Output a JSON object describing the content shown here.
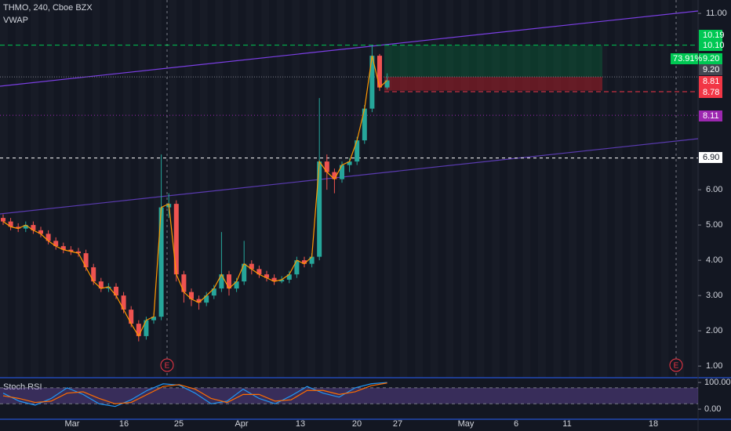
{
  "chart_data": {
    "type": "candlestick",
    "title": "THMO, 240, Cboe BZX",
    "indicator": "VWAP",
    "xtick_labels": [
      "Mar",
      "16",
      "25",
      "Apr",
      "13",
      "20",
      "27",
      "May",
      "6",
      "11",
      "18"
    ],
    "open": [
      5.2,
      5.1,
      4.95,
      4.9,
      5.0,
      4.85,
      4.75,
      4.55,
      4.4,
      4.3,
      4.25,
      4.2,
      3.8,
      3.4,
      3.2,
      3.25,
      3.0,
      2.6,
      2.2,
      1.85,
      2.3,
      2.4,
      5.5,
      5.6,
      3.6,
      3.1,
      2.9,
      2.8,
      3.0,
      3.2,
      3.6,
      3.2,
      3.4,
      3.9,
      3.75,
      3.6,
      3.5,
      3.4,
      3.45,
      3.6,
      4.0,
      3.9,
      4.1,
      6.8,
      6.5,
      6.3,
      6.7,
      6.8,
      7.4,
      8.3,
      9.8,
      8.9
    ],
    "high": [
      5.3,
      5.2,
      5.05,
      5.1,
      5.1,
      4.95,
      4.85,
      4.65,
      4.5,
      4.4,
      4.35,
      4.3,
      3.9,
      3.5,
      3.35,
      3.35,
      3.1,
      2.7,
      2.3,
      2.4,
      2.5,
      7.0,
      5.9,
      5.7,
      3.7,
      3.2,
      3.0,
      3.1,
      3.3,
      4.8,
      3.7,
      3.5,
      4.55,
      4.0,
      3.85,
      3.7,
      3.6,
      3.55,
      3.7,
      4.1,
      4.1,
      4.2,
      8.6,
      7.0,
      6.6,
      6.8,
      6.9,
      7.5,
      8.4,
      10.1,
      9.85,
      9.3
    ],
    "low": [
      5.0,
      4.85,
      4.8,
      4.8,
      4.75,
      4.65,
      4.45,
      4.3,
      4.2,
      4.15,
      4.1,
      3.7,
      3.3,
      3.1,
      3.1,
      2.9,
      2.5,
      2.1,
      1.7,
      1.75,
      2.2,
      2.3,
      5.2,
      3.4,
      2.8,
      2.7,
      2.6,
      2.7,
      2.9,
      3.1,
      3.0,
      3.1,
      3.3,
      3.6,
      3.5,
      3.4,
      3.3,
      3.35,
      3.35,
      3.5,
      3.8,
      3.8,
      4.0,
      6.0,
      5.9,
      6.2,
      6.5,
      6.7,
      7.3,
      8.2,
      8.8,
      8.85
    ],
    "close": [
      5.1,
      4.95,
      4.9,
      5.0,
      4.85,
      4.75,
      4.55,
      4.4,
      4.3,
      4.25,
      4.2,
      3.8,
      3.4,
      3.2,
      3.25,
      3.0,
      2.6,
      2.2,
      1.85,
      2.3,
      2.4,
      5.5,
      5.6,
      3.6,
      3.1,
      2.9,
      2.8,
      3.0,
      3.2,
      3.6,
      3.2,
      3.4,
      3.9,
      3.75,
      3.6,
      3.5,
      3.4,
      3.45,
      3.6,
      4.0,
      3.9,
      4.1,
      6.8,
      6.5,
      6.3,
      6.7,
      6.8,
      7.4,
      8.3,
      9.8,
      8.9,
      9.1
    ],
    "up_color": "#26a69a",
    "down_color": "#ef5350",
    "vwap_color": "#ff9800",
    "ylim": [
      0.67,
      11.38
    ],
    "yticks": [
      {
        "value": 1,
        "label": "1.00"
      },
      {
        "value": 2,
        "label": "2.00"
      },
      {
        "value": 3,
        "label": "3.00"
      },
      {
        "value": 4,
        "label": "4.00"
      },
      {
        "value": 5,
        "label": "5.00"
      },
      {
        "value": 6,
        "label": "6.00"
      },
      {
        "value": 11,
        "label": "11.00"
      }
    ],
    "levels": [
      {
        "value": 10.19,
        "label": "10.19",
        "color": "#00c853"
      },
      {
        "value": 10.1,
        "label": "10.10",
        "color": "#00c853"
      },
      {
        "value": 9.2,
        "label": "9.20",
        "color": "#00c853"
      },
      {
        "value": 9.2,
        "label": "9.20",
        "color": "#434651"
      },
      {
        "value": 8.81,
        "label": "8.81",
        "color": "#f23645"
      },
      {
        "value": 8.78,
        "label": "8.78",
        "color": "#f23645"
      },
      {
        "value": 8.11,
        "label": "8.11",
        "color": "#9c27b0"
      },
      {
        "value": 6.9,
        "label": "6.90",
        "color": "#ffffff"
      }
    ],
    "position": {
      "target": 10.1,
      "entry": 9.2,
      "stop": 8.81,
      "percent_label": "73.91%"
    },
    "events": [
      "E",
      "E"
    ],
    "stoch": {
      "title": "Stoch RSI",
      "ylim": [
        -38,
        112
      ],
      "yticks": [
        {
          "value": 100,
          "label": "100.00"
        },
        {
          "value": 0,
          "label": "0.00"
        }
      ],
      "bands": [
        80,
        20
      ],
      "k": [
        60,
        30,
        15,
        40,
        80,
        55,
        20,
        10,
        35,
        70,
        95,
        90,
        60,
        20,
        30,
        75,
        40,
        20,
        50,
        85,
        60,
        45,
        80,
        95,
        100
      ],
      "d": [
        50,
        40,
        25,
        30,
        60,
        65,
        40,
        20,
        25,
        55,
        85,
        92,
        75,
        40,
        25,
        55,
        55,
        30,
        35,
        70,
        70,
        55,
        65,
        88,
        98
      ],
      "k_color": "#2196f3",
      "d_color": "#ff6d00"
    }
  }
}
